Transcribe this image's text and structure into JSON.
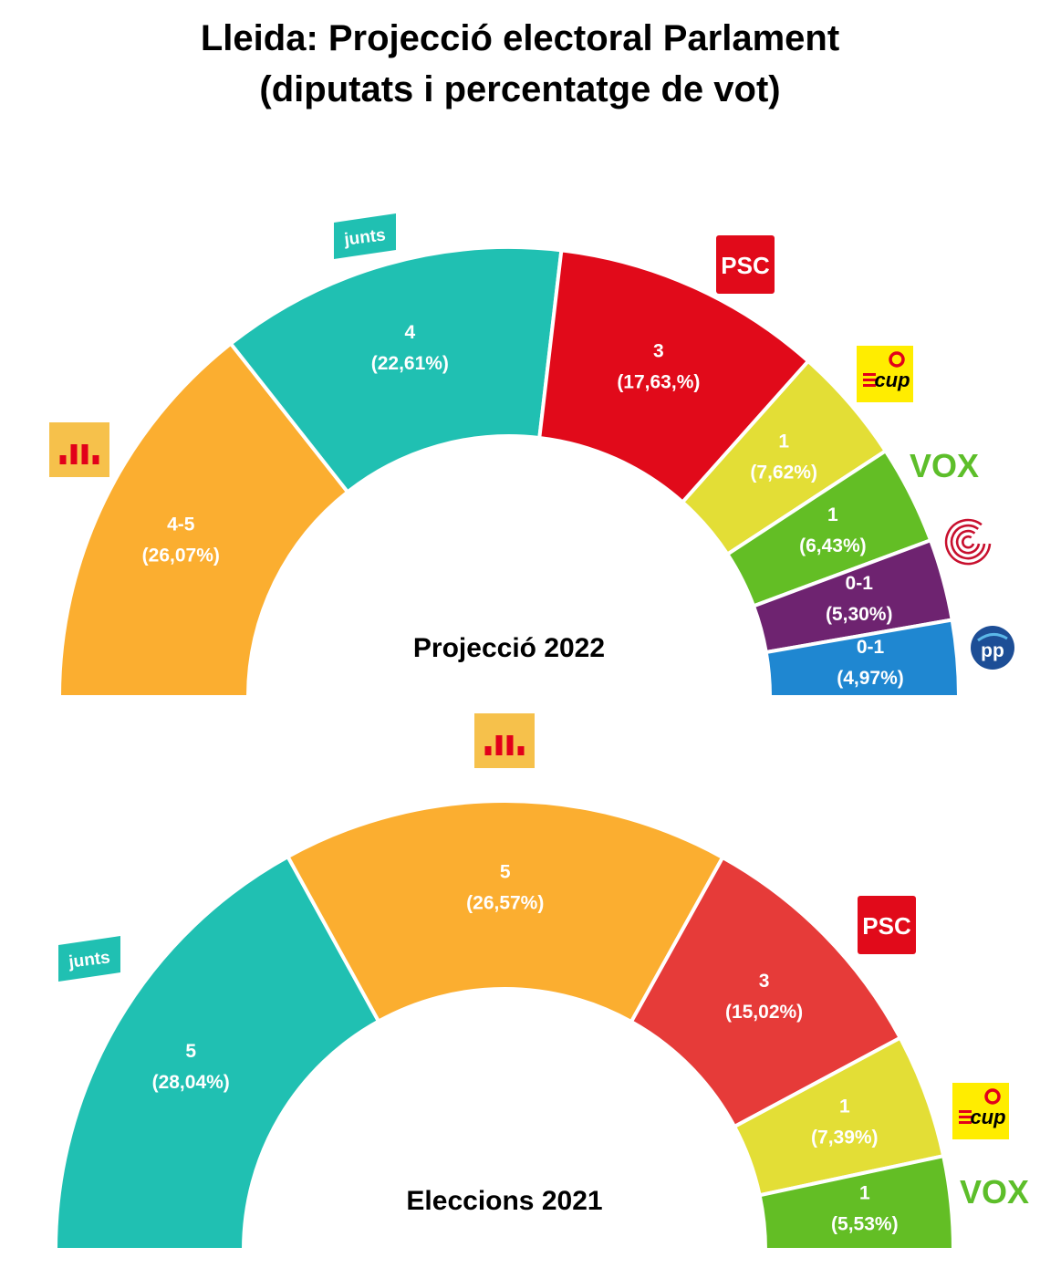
{
  "title": {
    "line1": "Lleida: Projecció electoral Parlament",
    "line2": "(diputats i percentatge de vot)"
  },
  "chart_data": [
    {
      "type": "pie",
      "subtype": "half-donut",
      "center_label": "Projecció 2022",
      "series": [
        {
          "party": "ERC",
          "logo": "erc-logo",
          "seats": "4-5",
          "pct_label": "(26,07%)",
          "value": 26.07,
          "color": "#FBAE30"
        },
        {
          "party": "Junts",
          "logo": "junts-logo",
          "logo_text": "junts",
          "seats": "4",
          "pct_label": "(22,61%)",
          "value": 22.61,
          "color": "#20C0B2"
        },
        {
          "party": "PSC",
          "logo": "psc-logo",
          "logo_text": "PSC",
          "seats": "3",
          "pct_label": "(17,63,%)",
          "value": 17.63,
          "color": "#E10A1A"
        },
        {
          "party": "CUP",
          "logo": "cup-logo",
          "logo_text": "cup",
          "seats": "1",
          "pct_label": "(7,62%)",
          "value": 7.62,
          "color": "#E3DE36"
        },
        {
          "party": "Vox",
          "logo": "vox-logo",
          "logo_text": "VOX",
          "seats": "1",
          "pct_label": "(6,43%)",
          "value": 6.43,
          "color": "#63BE25"
        },
        {
          "party": "En Comú Podem",
          "logo": "comuns-logo",
          "seats": "0-1",
          "pct_label": "(5,30%)",
          "value": 5.3,
          "color": "#6E2370"
        },
        {
          "party": "PP",
          "logo": "pp-logo",
          "logo_text": "pp",
          "seats": "0-1",
          "pct_label": "(4,97%)",
          "value": 4.97,
          "color": "#1F87D1"
        }
      ]
    },
    {
      "type": "pie",
      "subtype": "half-donut",
      "center_label": "Eleccions 2021",
      "series": [
        {
          "party": "Junts",
          "logo": "junts-logo",
          "logo_text": "junts",
          "seats": "5",
          "pct_label": "(28,04%)",
          "value": 28.04,
          "color": "#20C0B2"
        },
        {
          "party": "ERC",
          "logo": "erc-logo",
          "seats": "5",
          "pct_label": "(26,57%)",
          "value": 26.57,
          "color": "#FBAE30"
        },
        {
          "party": "PSC",
          "logo": "psc-logo",
          "logo_text": "PSC",
          "seats": "3",
          "pct_label": "(15,02%)",
          "value": 15.02,
          "color": "#E63B39"
        },
        {
          "party": "CUP",
          "logo": "cup-logo",
          "logo_text": "cup",
          "seats": "1",
          "pct_label": "(7,39%)",
          "value": 7.39,
          "color": "#E3DE36"
        },
        {
          "party": "Vox",
          "logo": "vox-logo",
          "logo_text": "VOX",
          "seats": "1",
          "pct_label": "(5,53%)",
          "value": 5.53,
          "color": "#63BE25"
        }
      ]
    }
  ]
}
